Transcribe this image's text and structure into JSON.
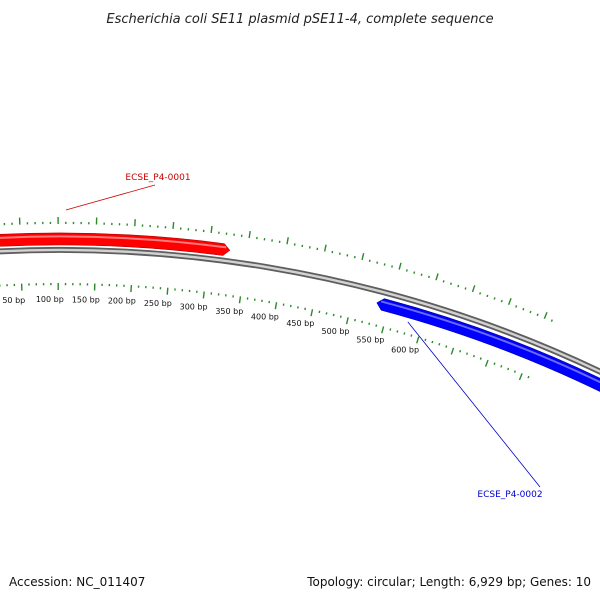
{
  "map": {
    "title": "Escherichia coli SE11 plasmid pSE11-4, complete sequence",
    "accession": "Accession: NC_011407",
    "summary": "Topology: circular; Length: 6,929 bp; Genes: 10"
  },
  "ticks": [
    {
      "bp": 50,
      "label": "50 bp"
    },
    {
      "bp": 100,
      "label": "100 bp"
    },
    {
      "bp": 150,
      "label": "150 bp"
    },
    {
      "bp": 200,
      "label": "200 bp"
    },
    {
      "bp": 250,
      "label": "250 bp"
    },
    {
      "bp": 300,
      "label": "300 bp"
    },
    {
      "bp": 350,
      "label": "350 bp"
    },
    {
      "bp": 400,
      "label": "400 bp"
    },
    {
      "bp": 450,
      "label": "450 bp"
    },
    {
      "bp": 500,
      "label": "500 bp"
    },
    {
      "bp": 550,
      "label": "550 bp"
    },
    {
      "bp": 600,
      "label": "600 bp"
    }
  ],
  "features": [
    {
      "label": "ECSE_P4-0001",
      "strand": "forward",
      "color": "#ff0000",
      "label_color": "#cc0000"
    },
    {
      "label": "ECSE_P4-0002",
      "strand": "reverse",
      "color": "#0000ff",
      "label_color": "#0000cc"
    }
  ],
  "colors": {
    "backbone": "#888888",
    "tick": "#2a8a2a"
  }
}
